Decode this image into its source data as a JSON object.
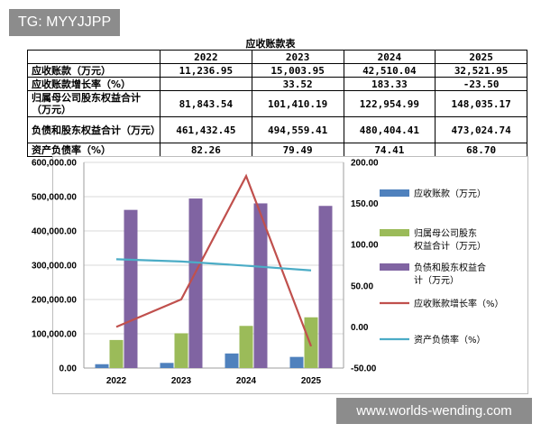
{
  "tag": "TG: MYYJJPP",
  "watermark": "www.worlds-wending.com",
  "table": {
    "title": "应收账款表",
    "years": [
      "2022",
      "2023",
      "2024",
      "2025"
    ],
    "rows": [
      {
        "label": "应收账款（万元）",
        "values": [
          "11,236.95",
          "15,003.95",
          "42,510.04",
          "32,521.95"
        ]
      },
      {
        "label": "应收账款增长率（%）",
        "values": [
          "",
          "33.52",
          "183.33",
          "-23.50"
        ]
      },
      {
        "label": "归属母公司股东权益合计（万元）",
        "values": [
          "81,843.54",
          "101,410.19",
          "122,954.99",
          "148,035.17"
        ]
      },
      {
        "label": "负债和股东权益合计（万元）",
        "values": [
          "461,432.45",
          "494,559.41",
          "480,404.41",
          "473,024.74"
        ]
      },
      {
        "label": "资产负债率（%）",
        "values": [
          "82.26",
          "79.49",
          "74.41",
          "68.70"
        ]
      }
    ]
  },
  "chart_data": {
    "type": "bar",
    "categories": [
      "2022",
      "2023",
      "2024",
      "2025"
    ],
    "ylim": [
      0,
      600000
    ],
    "y2lim": [
      -50,
      200
    ],
    "yticks": [
      "0.00",
      "100,000.00",
      "200,000.00",
      "300,000.00",
      "400,000.00",
      "500,000.00",
      "600,000.00"
    ],
    "y2ticks": [
      "-50.00",
      "0.00",
      "50.00",
      "100.00",
      "150.00",
      "200.00"
    ],
    "grid": true,
    "legend_position": "right",
    "series": [
      {
        "name": "应收账款（万元）",
        "kind": "bar",
        "axis": "left",
        "color": "#4f81bd",
        "values": [
          11236.95,
          15003.95,
          42510.04,
          32521.95
        ]
      },
      {
        "name": "归属母公司股东权益合计（万元）",
        "kind": "bar",
        "axis": "left",
        "color": "#9bbb59",
        "values": [
          81843.54,
          101410.19,
          122954.99,
          148035.17
        ]
      },
      {
        "name": "负债和股东权益合计（万元）",
        "kind": "bar",
        "axis": "left",
        "color": "#8064a2",
        "values": [
          461432.45,
          494559.41,
          480404.41,
          473024.74
        ]
      },
      {
        "name": "应收账款增长率（%）",
        "kind": "line",
        "axis": "right",
        "color": "#c0504d",
        "values": [
          0,
          33.52,
          183.33,
          -23.5
        ]
      },
      {
        "name": "资产负债率（%）",
        "kind": "line",
        "axis": "right",
        "color": "#4bacc6",
        "values": [
          82.26,
          79.49,
          74.41,
          68.7
        ]
      }
    ]
  }
}
